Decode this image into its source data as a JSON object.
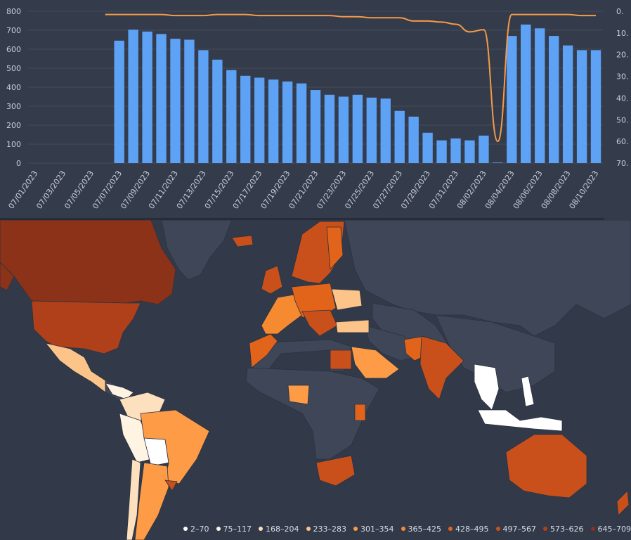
{
  "chart_data": {
    "type": "bar+line",
    "dates": [
      "07/01/2023",
      "07/02/2023",
      "07/03/2023",
      "07/04/2023",
      "07/05/2023",
      "07/06/2023",
      "07/07/2023",
      "07/08/2023",
      "07/09/2023",
      "07/10/2023",
      "07/11/2023",
      "07/12/2023",
      "07/13/2023",
      "07/14/2023",
      "07/15/2023",
      "07/16/2023",
      "07/17/2023",
      "07/18/2023",
      "07/19/2023",
      "07/20/2023",
      "07/21/2023",
      "07/22/2023",
      "07/23/2023",
      "07/24/2023",
      "07/25/2023",
      "07/26/2023",
      "07/27/2023",
      "07/28/2023",
      "07/29/2023",
      "07/30/2023",
      "07/31/2023",
      "08/01/2023",
      "08/02/2023",
      "08/03/2023",
      "08/04/2023",
      "08/05/2023",
      "08/06/2023",
      "08/07/2023",
      "08/08/2023",
      "08/09/2023",
      "08/10/2023"
    ],
    "x_tick_labels": [
      "07/01/2023",
      "07/03/2023",
      "07/05/2023",
      "07/07/2023",
      "07/09/2023",
      "07/11/2023",
      "07/13/2023",
      "07/15/2023",
      "07/17/2023",
      "07/19/2023",
      "07/21/2023",
      "07/23/2023",
      "07/25/2023",
      "07/27/2023",
      "07/29/2023",
      "07/31/2023",
      "08/02/2023",
      "08/04/2023",
      "08/06/2023",
      "08/08/2023",
      "08/10/2023"
    ],
    "bar_values": [
      0,
      0,
      0,
      0,
      0,
      0,
      645,
      703,
      693,
      680,
      655,
      650,
      595,
      545,
      490,
      460,
      450,
      440,
      430,
      420,
      385,
      360,
      350,
      360,
      345,
      340,
      275,
      245,
      160,
      120,
      130,
      120,
      145,
      3,
      670,
      730,
      710,
      670,
      620,
      595,
      595
    ],
    "line_values": [
      null,
      null,
      null,
      null,
      null,
      1.5,
      1.5,
      1.5,
      1.5,
      1.5,
      2,
      2,
      2,
      1.5,
      1.5,
      1.5,
      2,
      2,
      2,
      2,
      2,
      2,
      2.5,
      2.5,
      3,
      3,
      3,
      4.5,
      4.5,
      5,
      6,
      9.5,
      8.5,
      60,
      1.5,
      1.5,
      1.5,
      1.5,
      1.5,
      2,
      2
    ],
    "left_axis": {
      "ticks": [
        "0",
        "100",
        "200",
        "300",
        "400",
        "500",
        "600",
        "700",
        "800"
      ],
      "max": 800
    },
    "right_axis": {
      "ticks": [
        "0.",
        "10.",
        "20.",
        "30.",
        "40.",
        "50.",
        "60.",
        "70."
      ],
      "max": 70
    },
    "colors": {
      "bars": "#5ea2f5",
      "line": "#f59a47",
      "grid": "#434b5c",
      "text": "#c9ced8",
      "background": "#343c4c"
    }
  },
  "map": {
    "legend": [
      {
        "label": "2–70",
        "color": "#ffffff"
      },
      {
        "label": "75–117",
        "color": "#fff3e2"
      },
      {
        "label": "168–204",
        "color": "#fde0be"
      },
      {
        "label": "233–283",
        "color": "#fdc48a"
      },
      {
        "label": "301–354",
        "color": "#fd9b46"
      },
      {
        "label": "365–425",
        "color": "#f58a30"
      },
      {
        "label": "428–495",
        "color": "#e1641a"
      },
      {
        "label": "497–567",
        "color": "#c9501b"
      },
      {
        "label": "573–626",
        "color": "#b0401a"
      },
      {
        "label": "645–709",
        "color": "#8b3218"
      }
    ],
    "colors": {
      "ocean": "#323a4a",
      "no_data_land": "#3e4657",
      "border": "#2b3240"
    }
  }
}
